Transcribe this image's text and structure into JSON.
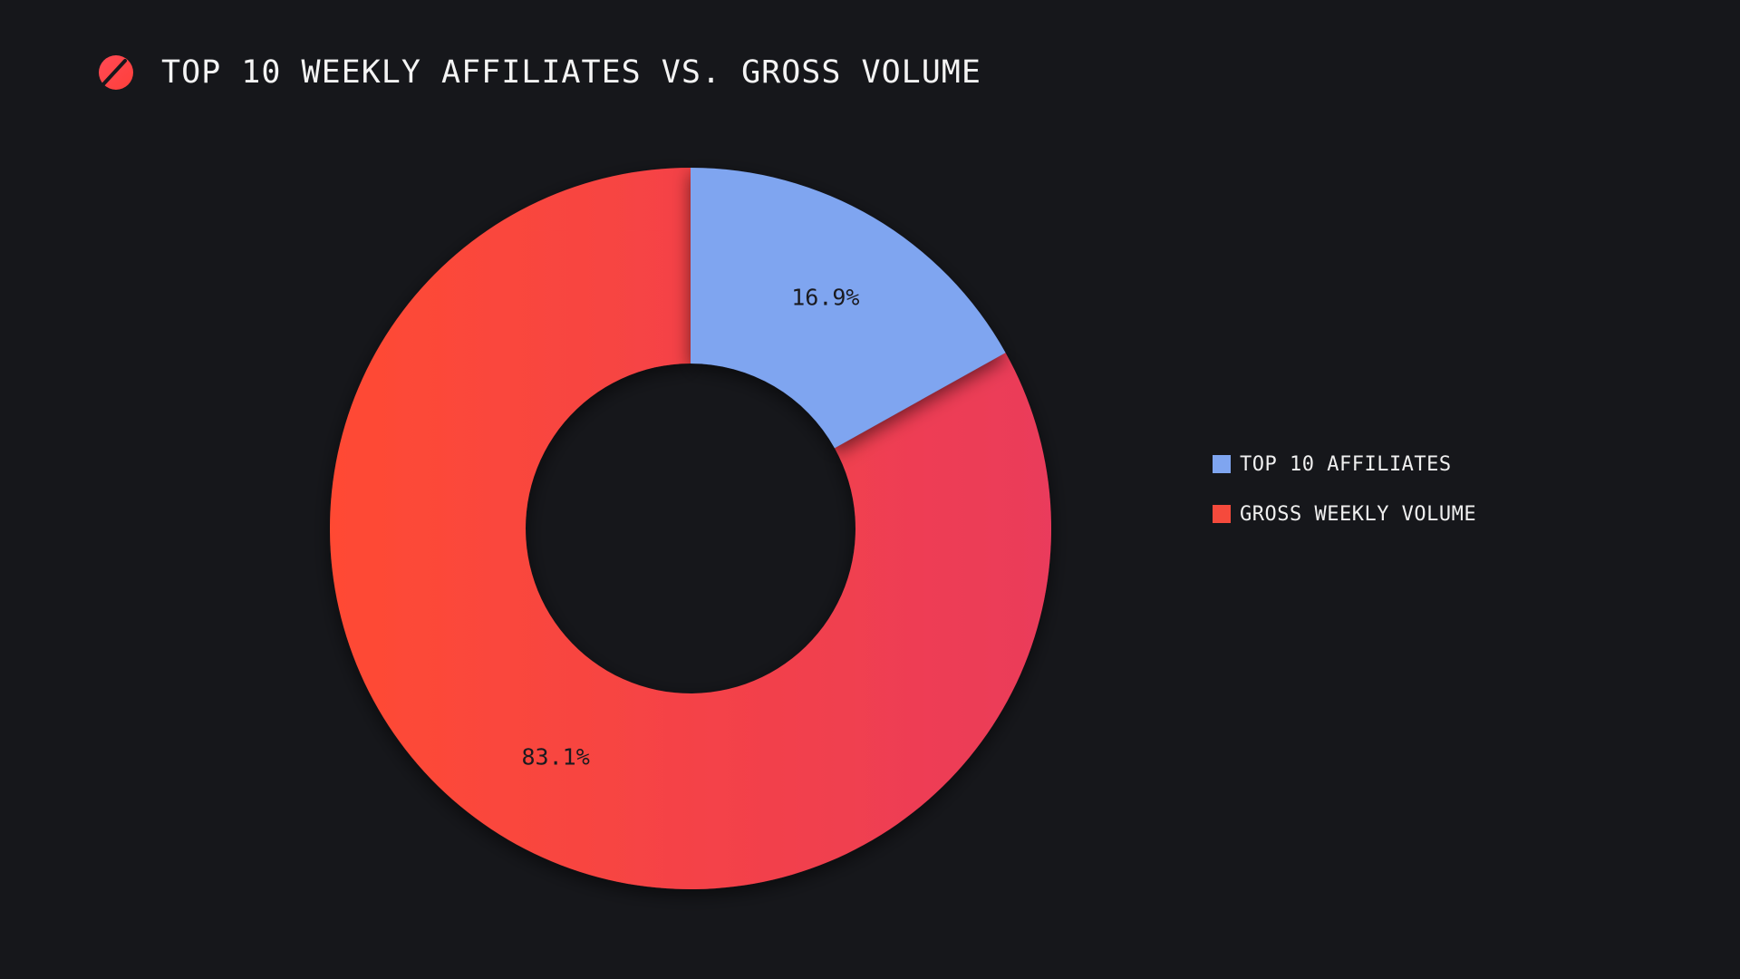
{
  "header": {
    "title": "TOP 10 WEEKLY AFFILIATES VS. GROSS VOLUME",
    "logo_icon": "slashed-circle-logo-icon"
  },
  "chart_data": {
    "type": "pie",
    "variant": "donut",
    "title": "TOP 10 WEEKLY AFFILIATES VS. GROSS VOLUME",
    "categories": [
      "TOP 10 AFFILIATES",
      "GROSS WEEKLY VOLUME"
    ],
    "values": [
      16.9,
      83.1
    ],
    "data_labels": [
      "16.9%",
      "83.1%"
    ],
    "colors": [
      "#7fa5f0",
      "#f54a3c"
    ],
    "gradient": [
      "#ff4a33",
      "#ea3b5b"
    ],
    "legend_position": "right"
  }
}
